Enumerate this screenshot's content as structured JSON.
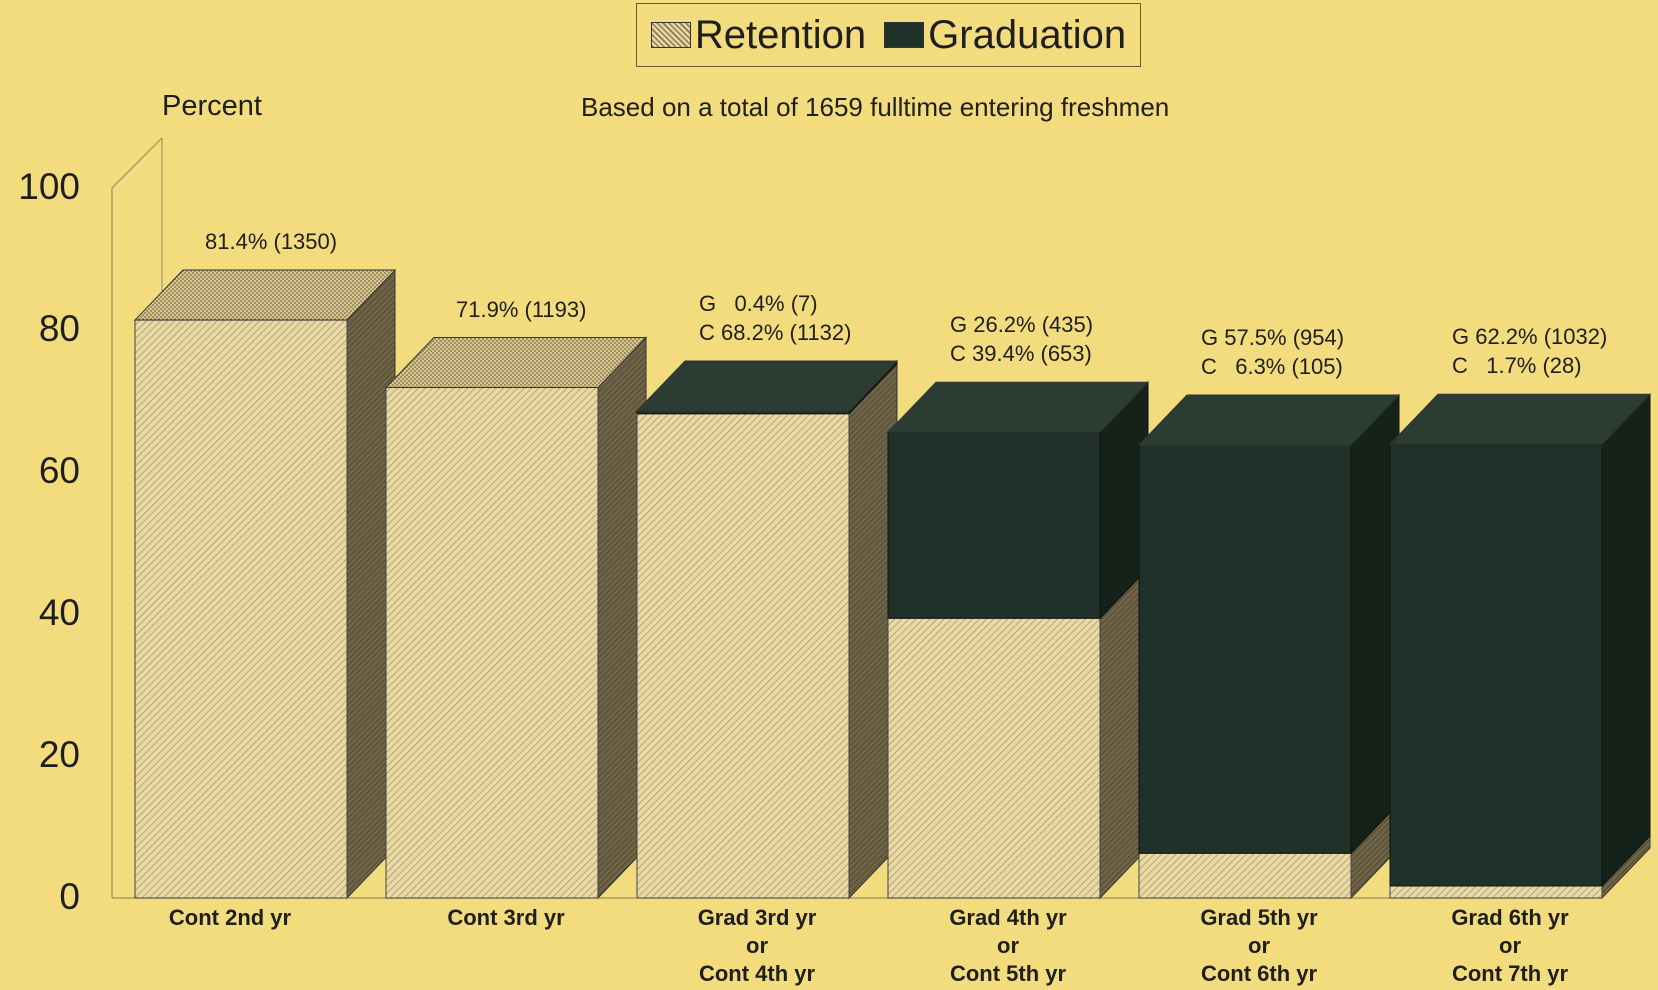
{
  "legend": {
    "retention": "Retention",
    "graduation": "Graduation"
  },
  "ylabel": "Percent",
  "subtitle": "Based on a total of 1659 fulltime entering freshmen",
  "colors": {
    "background": "#f2dc7e",
    "retention": "#e6d59c",
    "graduation": "#1f3128"
  },
  "chart_data": {
    "type": "bar",
    "stacked": true,
    "title": "",
    "subtitle": "Based on a total of 1659 fulltime entering freshmen",
    "ylabel": "Percent",
    "xlabel": "",
    "ylim": [
      0,
      100
    ],
    "yticks": [
      "0",
      "20",
      "40",
      "60",
      "80",
      "100"
    ],
    "categories": [
      "Cont 2nd yr",
      "Cont 3rd yr",
      "Grad 3rd yr or Cont 4th yr",
      "Grad 4th yr or Cont 5th yr",
      "Grad 5th yr or Cont 6th yr",
      "Grad 6th yr or Cont 7th yr"
    ],
    "category_lines": [
      [
        "Cont 2nd yr"
      ],
      [
        "Cont 3rd yr"
      ],
      [
        "Grad 3rd yr",
        "or",
        "Cont 4th yr"
      ],
      [
        "Grad 4th yr",
        "or",
        "Cont 5th yr"
      ],
      [
        "Grad 5th yr",
        "or",
        "Cont 6th yr"
      ],
      [
        "Grad 6th yr",
        "or",
        "Cont 7th yr"
      ]
    ],
    "series": [
      {
        "name": "Retention",
        "values": [
          81.4,
          71.9,
          68.2,
          39.4,
          6.3,
          1.7
        ]
      },
      {
        "name": "Graduation",
        "values": [
          0,
          0,
          0.4,
          26.2,
          57.5,
          62.2
        ]
      }
    ],
    "data_labels": [
      [
        "81.4% (1350)"
      ],
      [
        "71.9% (1193)"
      ],
      [
        "G   0.4% (7)",
        "C 68.2% (1132)"
      ],
      [
        "G 26.2% (435)",
        "C 39.4% (653)"
      ],
      [
        "G 57.5% (954)",
        "C   6.3% (105)"
      ],
      [
        "G 62.2% (1032)",
        "C   1.7% (28)"
      ]
    ],
    "grid": false,
    "legend_position": "top-center"
  }
}
